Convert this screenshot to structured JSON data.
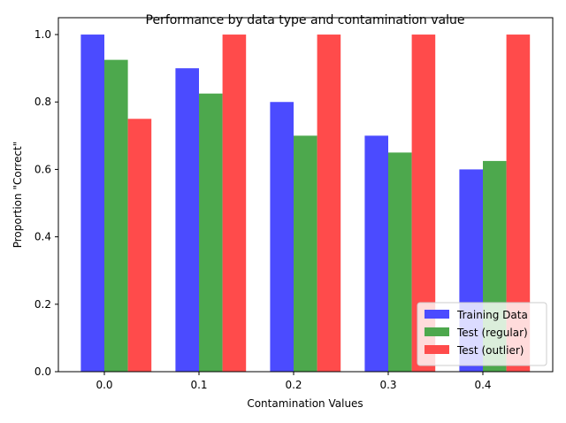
{
  "chart_data": {
    "type": "bar",
    "title": "Performance by data type and contamination value",
    "xlabel": "Contamination Values",
    "ylabel": "Proportion \"Correct\"",
    "categories": [
      "0.0",
      "0.1",
      "0.2",
      "0.3",
      "0.4"
    ],
    "ylim": [
      0,
      1.05
    ],
    "yticks": [
      "0.0",
      "0.2",
      "0.4",
      "0.6",
      "0.8",
      "1.0"
    ],
    "grid": false,
    "legend_position": "bottom-right",
    "series": [
      {
        "name": "Training Data",
        "color": "#4b4bff",
        "values": [
          1.0,
          0.9,
          0.8,
          0.7,
          0.6
        ]
      },
      {
        "name": "Test (regular)",
        "color": "#4da84d",
        "values": [
          0.925,
          0.825,
          0.7,
          0.65,
          0.625
        ]
      },
      {
        "name": "Test (outlier)",
        "color": "#ff4b4b",
        "values": [
          0.75,
          1.0,
          1.0,
          1.0,
          1.0
        ]
      }
    ]
  }
}
